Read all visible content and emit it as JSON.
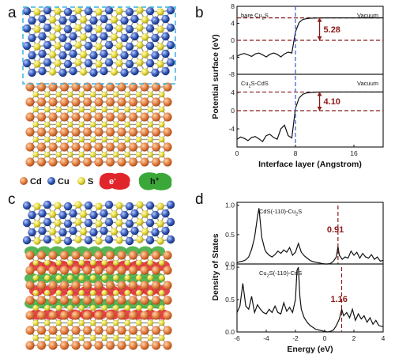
{
  "panel_labels": {
    "a": "a",
    "b": "b",
    "c": "c",
    "d": "d"
  },
  "legend": [
    {
      "label": "Cd",
      "color": "#d9773a"
    },
    {
      "label": "Cu",
      "color": "#2f56b4"
    },
    {
      "label": "S",
      "color": "#e2d530"
    }
  ],
  "carriers": {
    "electron": "e",
    "electron_sup": "-",
    "hole": "h",
    "hole_sup": "+",
    "electron_color": "#e1262b",
    "hole_color": "#3aa838"
  },
  "colors": {
    "cd": "#d9773a",
    "cu": "#2f56b4",
    "s": "#e2d530",
    "box": "#3bb0e0",
    "dash_red": "#8b1a1a",
    "dash_blue": "#3a55c8"
  },
  "chart_data": [
    {
      "type": "line",
      "panel": "b",
      "xlabel": "Interface layer (Angstrom)",
      "ylabel": "Potential surface (eV)",
      "xlim": [
        0,
        20
      ],
      "xticks": [
        "0",
        "8",
        "16"
      ],
      "ref_line_x": 8,
      "grid": false,
      "subplots": [
        {
          "annotation_base": "bare Cu",
          "annotation_sub": "2",
          "annotation_tail": "S",
          "region_label": "Vacuum",
          "value_label": "5.28",
          "ylim": [
            -8,
            8
          ],
          "yticks": [
            "8",
            "4",
            "0",
            "-4",
            "-8"
          ],
          "dashed_levels": [
            5.28,
            0
          ],
          "x": [
            0,
            0.5,
            1,
            1.5,
            2,
            2.5,
            3,
            3.5,
            4,
            4.5,
            5,
            5.5,
            6,
            6.5,
            7,
            7.5,
            8,
            8.5,
            9,
            9.5,
            10,
            11,
            12,
            14,
            16,
            18,
            20
          ],
          "y": [
            -3.8,
            -3.3,
            -3.1,
            -3.4,
            -3.8,
            -3.2,
            -3.0,
            -3.4,
            -3.9,
            -3.3,
            -3.0,
            -3.3,
            -3.9,
            -3.2,
            -2.8,
            -3.0,
            2.0,
            4.2,
            4.9,
            5.1,
            5.2,
            5.25,
            5.28,
            5.28,
            5.28,
            5.28,
            5.28
          ]
        },
        {
          "annotation_base": "Cu",
          "annotation_sub": "2",
          "annotation_tail": "S-CdS",
          "region_label": "Vacuum",
          "value_label": "4.10",
          "ylim": [
            -8,
            8
          ],
          "yticks": [
            "4",
            "0",
            "-4"
          ],
          "dashed_levels": [
            4.1,
            0
          ],
          "x": [
            0,
            0.5,
            1,
            1.5,
            2,
            2.5,
            3,
            3.5,
            4,
            4.5,
            5,
            5.5,
            6,
            6.5,
            7,
            7.5,
            8,
            8.5,
            9,
            9.5,
            10,
            11,
            12,
            14,
            16,
            18,
            20
          ],
          "y": [
            -6.3,
            -5.8,
            -6.1,
            -6.6,
            -5.9,
            -5.7,
            -6.2,
            -6.8,
            -5.5,
            -5.2,
            -5.9,
            -6.3,
            -4.0,
            -3.2,
            -5.5,
            -6.0,
            0.5,
            2.8,
            3.6,
            3.9,
            4.0,
            4.08,
            4.1,
            4.1,
            4.1,
            4.1,
            4.1
          ]
        }
      ]
    },
    {
      "type": "line",
      "panel": "d",
      "xlabel": "Energy (eV)",
      "ylabel": "Density of States",
      "xlim": [
        -6,
        4
      ],
      "xticks": [
        "-6",
        "-4",
        "-2",
        "0",
        "2",
        "4"
      ],
      "grid": false,
      "subplots": [
        {
          "annotation_base": "CdS(-110)-Cu",
          "annotation_sub": "2",
          "annotation_tail": "S",
          "value_label": "0.91",
          "marker_x": 0.91,
          "ylim": [
            0,
            1.05
          ],
          "yticks": [
            "1.0",
            "0.5",
            "0.0"
          ],
          "x": [
            -6,
            -5.8,
            -5.6,
            -5.4,
            -5.2,
            -5,
            -4.8,
            -4.6,
            -4.5,
            -4.4,
            -4.3,
            -4.2,
            -4.1,
            -4,
            -3.8,
            -3.6,
            -3.4,
            -3.2,
            -3,
            -2.8,
            -2.6,
            -2.4,
            -2.2,
            -2,
            -1.8,
            -1.6,
            -1.4,
            -1.2,
            -1,
            -0.8,
            -0.6,
            -0.4,
            -0.2,
            0,
            0.2,
            0.4,
            0.6,
            0.8,
            0.91,
            1.0,
            1.2,
            1.4,
            1.6,
            1.8,
            2,
            2.2,
            2.4,
            2.6,
            2.8,
            3,
            3.2,
            3.4,
            3.6,
            3.8,
            4
          ],
          "y": [
            0.02,
            0.04,
            0.05,
            0.07,
            0.12,
            0.25,
            0.45,
            0.8,
            0.95,
            0.7,
            0.45,
            0.35,
            0.25,
            0.2,
            0.15,
            0.12,
            0.16,
            0.22,
            0.18,
            0.24,
            0.2,
            0.28,
            0.15,
            0.2,
            0.35,
            0.2,
            0.14,
            0.1,
            0.06,
            0.04,
            0.03,
            0.02,
            0.01,
            0.0,
            0.0,
            0.01,
            0.05,
            0.12,
            0.3,
            0.15,
            0.08,
            0.12,
            0.1,
            0.22,
            0.15,
            0.2,
            0.1,
            0.18,
            0.12,
            0.1,
            0.16,
            0.08,
            0.12,
            0.05,
            0.06
          ]
        },
        {
          "annotation_base": "Cu",
          "annotation_sub": "2",
          "annotation_tail": "S(-110)-CdS",
          "value_label": "1.16",
          "marker_x": 1.16,
          "ylim": [
            0,
            1.05
          ],
          "yticks": [
            "1.0",
            "0.5",
            "0.0"
          ],
          "x": [
            -6,
            -5.8,
            -5.6,
            -5.4,
            -5.2,
            -5,
            -4.8,
            -4.6,
            -4.4,
            -4.2,
            -4,
            -3.8,
            -3.6,
            -3.4,
            -3.2,
            -3,
            -2.8,
            -2.6,
            -2.4,
            -2.2,
            -2.0,
            -1.9,
            -1.8,
            -1.7,
            -1.6,
            -1.4,
            -1.2,
            -1,
            -0.8,
            -0.6,
            -0.4,
            -0.2,
            0,
            0.2,
            0.4,
            0.6,
            0.8,
            1.0,
            1.16,
            1.3,
            1.5,
            1.7,
            1.9,
            2.1,
            2.3,
            2.5,
            2.7,
            2.9,
            3.1,
            3.3,
            3.5,
            3.7,
            4
          ],
          "y": [
            0.3,
            0.4,
            0.75,
            0.4,
            0.35,
            0.55,
            0.3,
            0.42,
            0.35,
            0.3,
            0.28,
            0.35,
            0.3,
            0.4,
            0.3,
            0.28,
            0.45,
            0.32,
            0.38,
            0.3,
            0.5,
            0.95,
            1.0,
            0.55,
            0.35,
            0.22,
            0.15,
            0.1,
            0.07,
            0.04,
            0.03,
            0.02,
            0.01,
            0.0,
            0.01,
            0.03,
            0.1,
            0.2,
            0.35,
            0.25,
            0.3,
            0.22,
            0.35,
            0.18,
            0.28,
            0.2,
            0.25,
            0.15,
            0.22,
            0.12,
            0.18,
            0.1,
            0.08
          ]
        }
      ]
    }
  ]
}
